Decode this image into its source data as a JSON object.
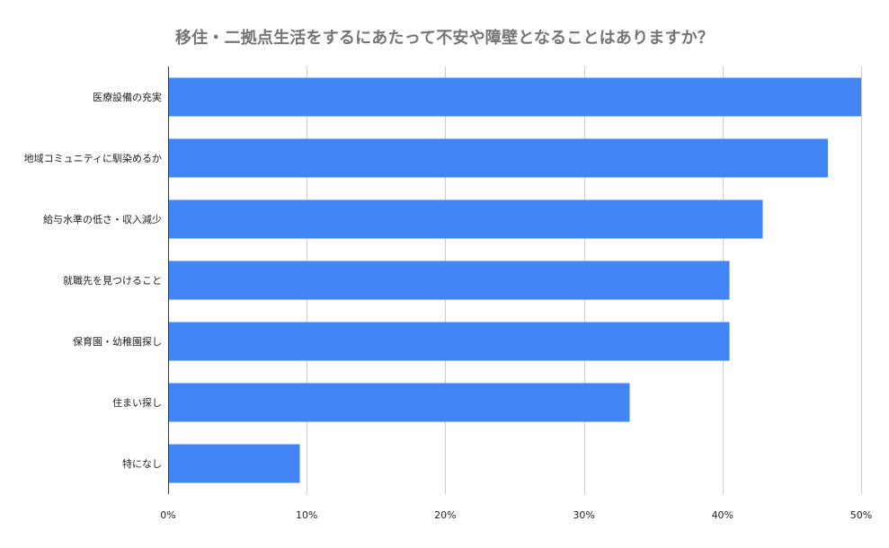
{
  "chart_data": {
    "type": "bar",
    "orientation": "horizontal",
    "title": "移住・二拠点生活をするにあたって不安や障壁となることはありますか？",
    "categories": [
      "医療設備の充実",
      "地域コミュニティに馴染めるか",
      "給与水準の低さ・収入減少",
      "就職先を見つけること",
      "保育園・幼稚園探し",
      "住まい探し",
      "特になし"
    ],
    "values": [
      0.5,
      0.476,
      0.429,
      0.405,
      0.405,
      0.333,
      0.095
    ],
    "xlim": [
      0,
      0.5
    ],
    "xticks": [
      {
        "value": 0,
        "label": "0%"
      },
      {
        "value": 0.1,
        "label": "10%"
      },
      {
        "value": 0.2,
        "label": "20%"
      },
      {
        "value": 0.3,
        "label": "30%"
      },
      {
        "value": 0.4,
        "label": "40%"
      },
      {
        "value": 0.5,
        "label": "50%"
      }
    ],
    "xlabel": "",
    "ylabel": "",
    "grid": true,
    "legend": "none",
    "colors": {
      "bar": "#4285f4",
      "grid": "#cccccc",
      "axis": "#333333",
      "title": "#757575",
      "text": "#222222"
    }
  }
}
